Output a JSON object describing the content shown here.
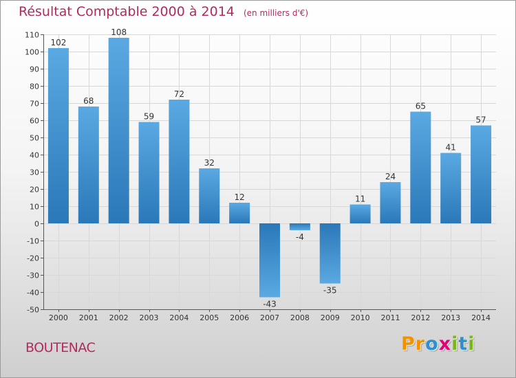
{
  "chart_data": {
    "type": "bar",
    "title": "Résultat Comptable 2000 à 2014",
    "subtitle": "(en milliers d'€)",
    "categories": [
      "2000",
      "2001",
      "2002",
      "2003",
      "2004",
      "2005",
      "2006",
      "2007",
      "2008",
      "2009",
      "2010",
      "2011",
      "2012",
      "2013",
      "2014"
    ],
    "values": [
      102,
      68,
      108,
      59,
      72,
      32,
      12,
      -43,
      -4,
      -35,
      11,
      24,
      65,
      41,
      57
    ],
    "ylim": [
      -50,
      110
    ],
    "yticks": [
      110,
      100,
      90,
      80,
      70,
      60,
      50,
      40,
      30,
      20,
      10,
      0,
      -10,
      -20,
      -30,
      -40,
      -50
    ],
    "xlabel": "",
    "ylabel": "",
    "grid": true,
    "legend": "none"
  },
  "commune": "BOUTENAC",
  "logo": {
    "letters": [
      "P",
      "r",
      "o",
      "x",
      "i",
      "t",
      "i"
    ],
    "colors": [
      "#f39200",
      "#f39200",
      "#2e8fd1",
      "#e2007a",
      "#7ab51d",
      "#2e8fd1",
      "#7ab51d"
    ]
  },
  "colors": {
    "title": "#b22a5e",
    "bar_light": "#5aa9e2",
    "bar_dark": "#2a78b8",
    "grid": "#d8d8d8",
    "axis": "#555555",
    "tick_text": "#333333"
  }
}
